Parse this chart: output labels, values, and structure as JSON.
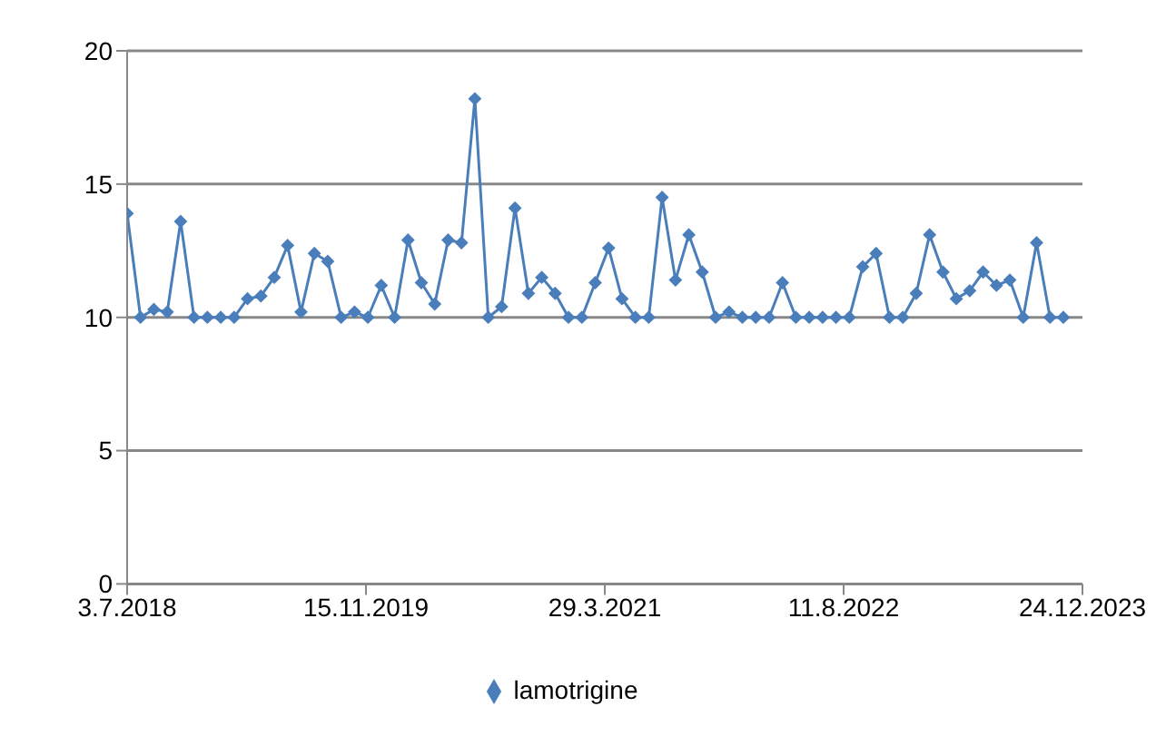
{
  "chart_data": {
    "type": "line",
    "x": [
      "2018-07-03",
      "2018-07-31",
      "2018-08-28",
      "2018-09-25",
      "2018-10-23",
      "2018-11-20",
      "2018-12-18",
      "2019-01-15",
      "2019-02-12",
      "2019-03-12",
      "2019-04-09",
      "2019-05-07",
      "2019-06-04",
      "2019-07-02",
      "2019-07-30",
      "2019-08-27",
      "2019-09-24",
      "2019-10-22",
      "2019-11-19",
      "2019-12-17",
      "2020-01-14",
      "2020-02-11",
      "2020-03-10",
      "2020-04-07",
      "2020-05-05",
      "2020-06-02",
      "2020-06-30",
      "2020-07-28",
      "2020-08-25",
      "2020-09-22",
      "2020-10-20",
      "2020-11-17",
      "2020-12-15",
      "2021-01-12",
      "2021-02-09",
      "2021-03-09",
      "2021-04-06",
      "2021-05-04",
      "2021-06-01",
      "2021-06-29",
      "2021-07-27",
      "2021-08-24",
      "2021-09-21",
      "2021-10-19",
      "2021-11-16",
      "2021-12-14",
      "2022-01-11",
      "2022-02-08",
      "2022-03-08",
      "2022-04-05",
      "2022-05-03",
      "2022-05-31",
      "2022-06-28",
      "2022-07-26",
      "2022-08-23",
      "2022-09-20",
      "2022-10-18",
      "2022-11-15",
      "2022-12-13",
      "2023-01-10",
      "2023-02-07",
      "2023-03-07",
      "2023-04-04",
      "2023-05-02",
      "2023-05-30",
      "2023-06-27",
      "2023-07-25",
      "2023-08-22",
      "2023-09-19",
      "2023-10-17",
      "2023-11-14"
    ],
    "series": [
      {
        "name": "lamotrigine",
        "color": "#4a7ebb",
        "values": [
          13.9,
          10,
          10.3,
          10.2,
          13.6,
          10,
          10,
          10,
          10,
          10.7,
          10.8,
          11.5,
          12.7,
          10.2,
          12.4,
          12.1,
          10,
          10.2,
          10,
          11.2,
          10,
          12.9,
          11.3,
          10.5,
          12.9,
          12.8,
          18.2,
          10,
          10.4,
          14.1,
          10.9,
          11.5,
          10.9,
          10,
          10,
          11.3,
          12.6,
          10.7,
          10,
          10,
          14.5,
          11.4,
          13.1,
          11.7,
          10,
          10.2,
          10,
          10,
          10,
          11.3,
          10,
          10,
          10,
          10,
          10,
          11.9,
          12.4,
          10,
          10,
          10.9,
          13.1,
          11.7,
          10.7,
          11,
          11.7,
          11.2,
          11.4,
          10,
          12.8,
          10,
          10
        ]
      }
    ],
    "xlim": [
      "2018-07-03",
      "2023-12-24"
    ],
    "xticks": [
      {
        "value": "2018-07-03",
        "label": "3.7.2018"
      },
      {
        "value": "2019-11-15",
        "label": "15.11.2019"
      },
      {
        "value": "2021-03-29",
        "label": "29.3.2021"
      },
      {
        "value": "2022-08-11",
        "label": "11.8.2022"
      },
      {
        "value": "2023-12-24",
        "label": "24.12.2023"
      }
    ],
    "ylim": [
      0,
      20
    ],
    "yticks": [
      0,
      5,
      10,
      15,
      20
    ],
    "grid": "y",
    "legend": "bottom",
    "marker": "diamond",
    "line_style": "solid"
  }
}
